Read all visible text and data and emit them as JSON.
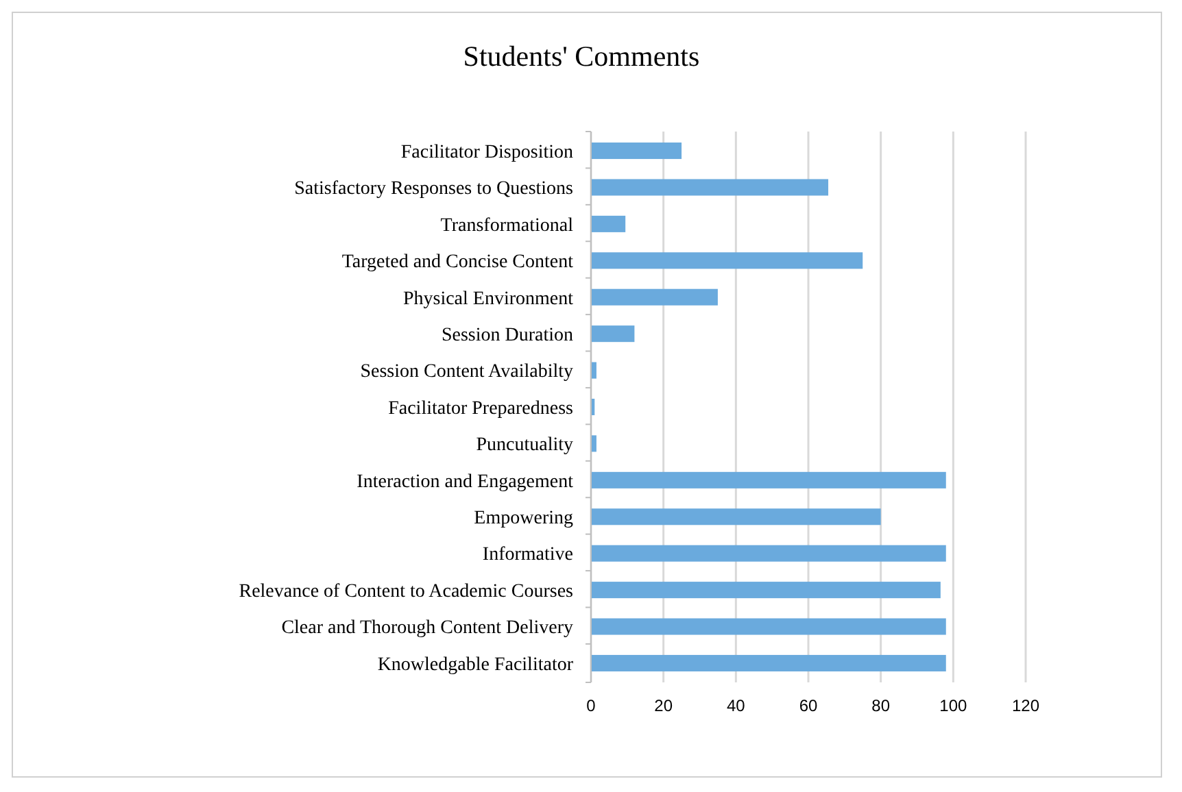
{
  "chart_data": {
    "type": "bar",
    "orientation": "horizontal",
    "title": "Students' Comments",
    "categories": [
      "Facilitator Disposition",
      "Satisfactory Responses to Questions",
      "Transformational",
      "Targeted and Concise Content",
      "Physical Environment",
      "Session Duration",
      "Session Content Availabilty",
      "Facilitator Preparedness",
      "Puncutuality",
      "Interaction and Engagement",
      "Empowering ",
      "Informative ",
      "Relevance of Content to Academic Courses",
      "Clear and Thorough Content Delivery",
      "Knowledgable Facilitator"
    ],
    "values": [
      25,
      65.5,
      9.5,
      75,
      35,
      12,
      1.5,
      1,
      1.5,
      98,
      80,
      98,
      96.5,
      98,
      98
    ],
    "color": "#6aaadd",
    "xlim": [
      0,
      120
    ],
    "xticks": [
      0,
      20,
      40,
      60,
      80,
      100,
      120
    ],
    "grid": "x"
  }
}
